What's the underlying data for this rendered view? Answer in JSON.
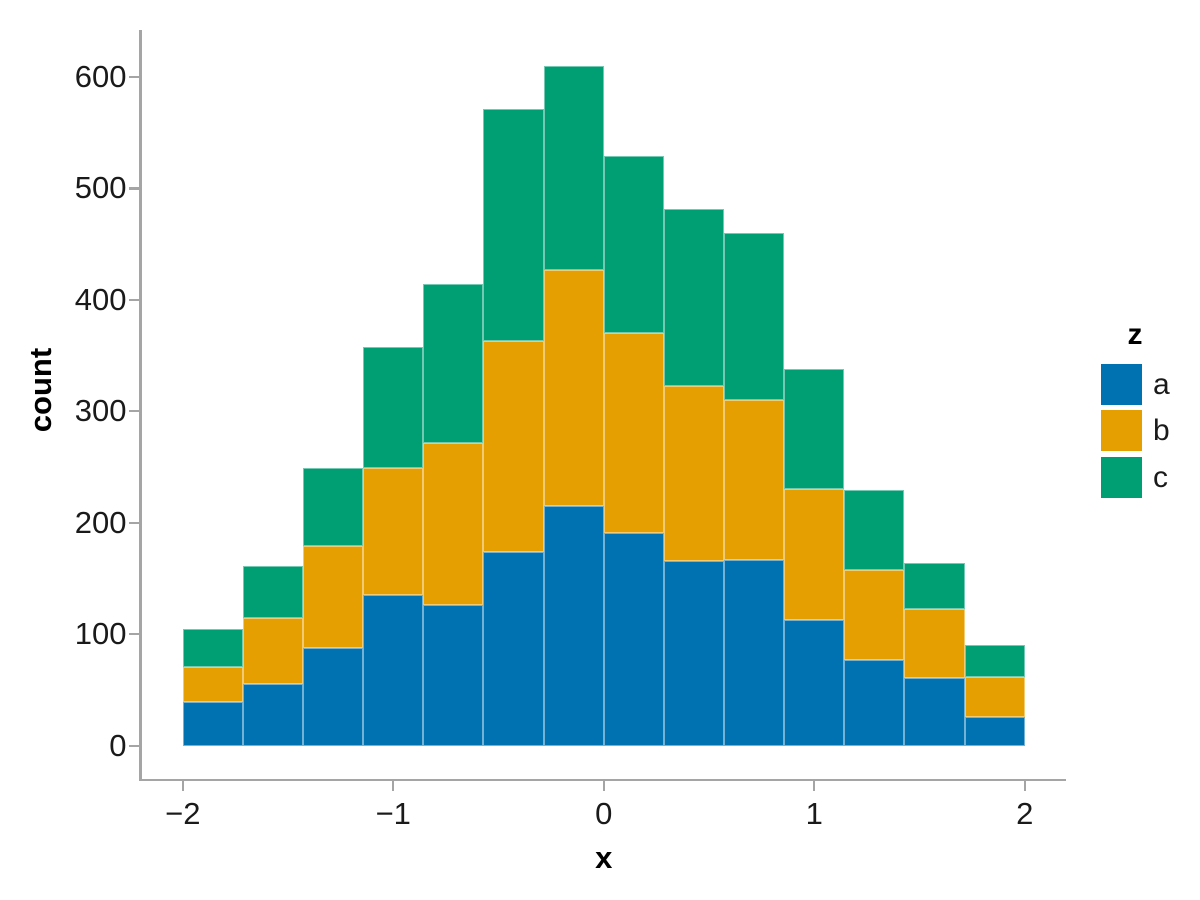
{
  "figure": {
    "background": "#ffffff",
    "axis_line_color": "#a5a5a5",
    "tick_text_color": "#1a1a1a",
    "title_text_color": "#000000"
  },
  "chart_data": {
    "type": "bar",
    "subtype": "stacked-histogram",
    "title": "",
    "xlabel": "x",
    "ylabel": "count",
    "grid": false,
    "bin_start": -2,
    "bin_end": 2,
    "bin_count": 14,
    "bin_width": 0.2857,
    "bin_edges": [
      -2,
      -1.714,
      -1.429,
      -1.143,
      -0.857,
      -0.571,
      -0.286,
      0,
      0.286,
      0.571,
      0.857,
      1.143,
      1.429,
      1.714,
      2
    ],
    "x_tick_values": [
      -2,
      -1,
      0,
      1,
      2
    ],
    "x_tick_labels": [
      "−2",
      "−1",
      "0",
      "1",
      "2"
    ],
    "y_ticks": [
      0,
      100,
      200,
      300,
      400,
      500,
      600
    ],
    "ylim": [
      0,
      642
    ],
    "series": [
      {
        "name": "a",
        "color": "#0072B2",
        "values": [
          39,
          55,
          88,
          135,
          126,
          174,
          215,
          191,
          166,
          167,
          113,
          77,
          61,
          26
        ]
      },
      {
        "name": "b",
        "color": "#E69F00",
        "values": [
          32,
          60,
          91,
          114,
          146,
          189,
          212,
          179,
          157,
          143,
          117,
          81,
          62,
          36
        ]
      },
      {
        "name": "c",
        "color": "#009E73",
        "values": [
          34,
          46,
          70,
          109,
          142,
          208,
          183,
          159,
          159,
          150,
          108,
          71,
          41,
          28
        ]
      }
    ],
    "stack_totals": [
      105,
      161,
      249,
      358,
      414,
      571,
      610,
      529,
      482,
      460,
      338,
      229,
      164,
      90
    ],
    "legend": {
      "title": "z",
      "position": "right",
      "entries": [
        {
          "label": "a",
          "color": "#0072B2"
        },
        {
          "label": "b",
          "color": "#E69F00"
        },
        {
          "label": "c",
          "color": "#009E73"
        }
      ]
    }
  }
}
